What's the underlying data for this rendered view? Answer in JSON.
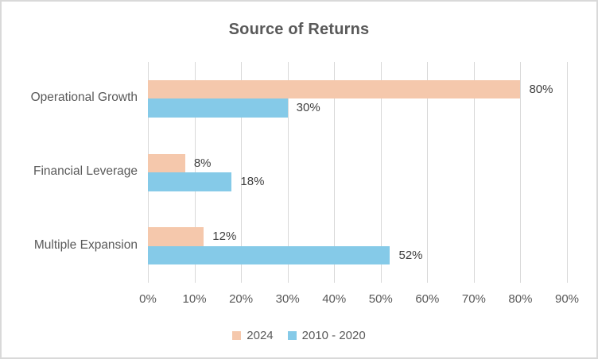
{
  "chart_data": {
    "type": "bar",
    "orientation": "horizontal",
    "title": "Source of Returns",
    "categories": [
      "Operational Growth",
      "Financial Leverage",
      "Multiple Expansion"
    ],
    "series": [
      {
        "name": "2024",
        "color": "#f5c8ac",
        "values": [
          80,
          8,
          12
        ],
        "data_labels": [
          "80%",
          "8%",
          "12%"
        ]
      },
      {
        "name": "2010 - 2020",
        "color": "#85cae8",
        "values": [
          30,
          18,
          52
        ],
        "data_labels": [
          "30%",
          "18%",
          "52%"
        ]
      }
    ],
    "x_axis": {
      "min": 0,
      "max": 90,
      "tick_step": 10,
      "tick_labels": [
        "0%",
        "10%",
        "20%",
        "30%",
        "40%",
        "50%",
        "60%",
        "70%",
        "80%",
        "90%"
      ]
    },
    "grid": true,
    "legend_position": "bottom",
    "colors": {
      "gridline": "#d9d9d9",
      "axis_text": "#595959",
      "title_text": "#595959",
      "data_label_text": "#404040",
      "chart_border": "#d9d9d9",
      "background": "#ffffff"
    }
  }
}
